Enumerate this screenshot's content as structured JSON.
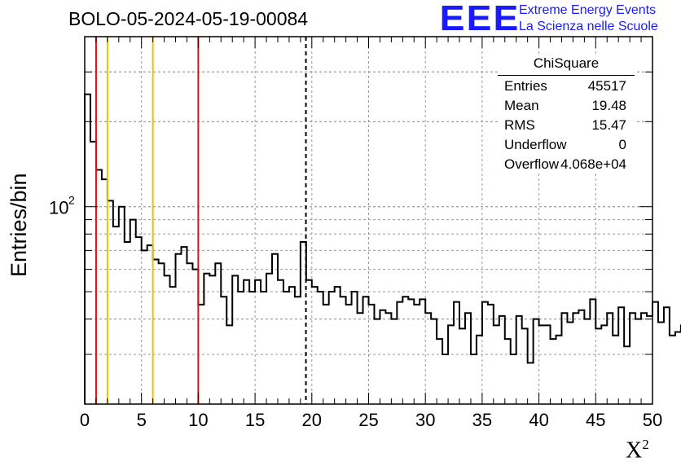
{
  "title": "BOLO-05-2024-05-19-00084",
  "logo": {
    "mark": "EEE",
    "line1": "Extreme Energy Events",
    "line2": "La Scienza nelle Scuole"
  },
  "stats": {
    "header": "ChiSquare",
    "rows": [
      {
        "key": "Entries",
        "value": "45517"
      },
      {
        "key": "Mean",
        "value": "19.48"
      },
      {
        "key": "RMS",
        "value": "15.47"
      },
      {
        "key": "Underflow",
        "value": "0"
      },
      {
        "key": "Overflow",
        "value": "4.068e+04"
      }
    ]
  },
  "colors": {
    "histogram": "#000000",
    "red_lines": "#dd1111",
    "yellow_lines": "#f0c000",
    "grid": "#999999"
  },
  "chart_data": {
    "type": "histogram",
    "xlabel": "X",
    "xlabel_superscript": "2",
    "ylabel": "Entries/bin",
    "xlim": [
      0,
      50
    ],
    "ylog": true,
    "ylim": [
      20,
      400
    ],
    "xticks": [
      "0",
      "5",
      "10",
      "15",
      "20",
      "25",
      "30",
      "35",
      "40",
      "45",
      "50"
    ],
    "ytick_label_base": "10",
    "ytick_label_exponent": "2",
    "grid": true,
    "bin_width": 0.5,
    "values": [
      250,
      170,
      135,
      125,
      105,
      85,
      100,
      75,
      90,
      78,
      70,
      73,
      65,
      63,
      57,
      52,
      68,
      72,
      63,
      60,
      45,
      58,
      57,
      63,
      48,
      38,
      57,
      50,
      55,
      50,
      55,
      50,
      58,
      68,
      55,
      50,
      52,
      48,
      75,
      55,
      52,
      50,
      45,
      50,
      52,
      48,
      45,
      50,
      42,
      48,
      45,
      40,
      43,
      42,
      40,
      46,
      48,
      47,
      45,
      47,
      42,
      40,
      34,
      30,
      38,
      46,
      37,
      42,
      30,
      35,
      46,
      45,
      38,
      41,
      34,
      30,
      41,
      37,
      28,
      40,
      38,
      38,
      34,
      35,
      42,
      39,
      42,
      43,
      40,
      47,
      37,
      38,
      42,
      35,
      44,
      32,
      42,
      40,
      42,
      41,
      46,
      39,
      44,
      35,
      36,
      38,
      41,
      34,
      39,
      38,
      46,
      35,
      33,
      40,
      44,
      40,
      40,
      38,
      31,
      41,
      34,
      37,
      30,
      30,
      31,
      34,
      35,
      38,
      32,
      40,
      34,
      30,
      38,
      31,
      35,
      33,
      35,
      36,
      36,
      38
    ],
    "vertical_lines": [
      {
        "x": 1,
        "color": "red",
        "style": "solid"
      },
      {
        "x": 2,
        "color": "yellow",
        "style": "solid"
      },
      {
        "x": 6,
        "color": "yellow",
        "style": "solid"
      },
      {
        "x": 10,
        "color": "red",
        "style": "solid"
      },
      {
        "x": 19.48,
        "color": "black",
        "style": "dashed"
      }
    ]
  }
}
